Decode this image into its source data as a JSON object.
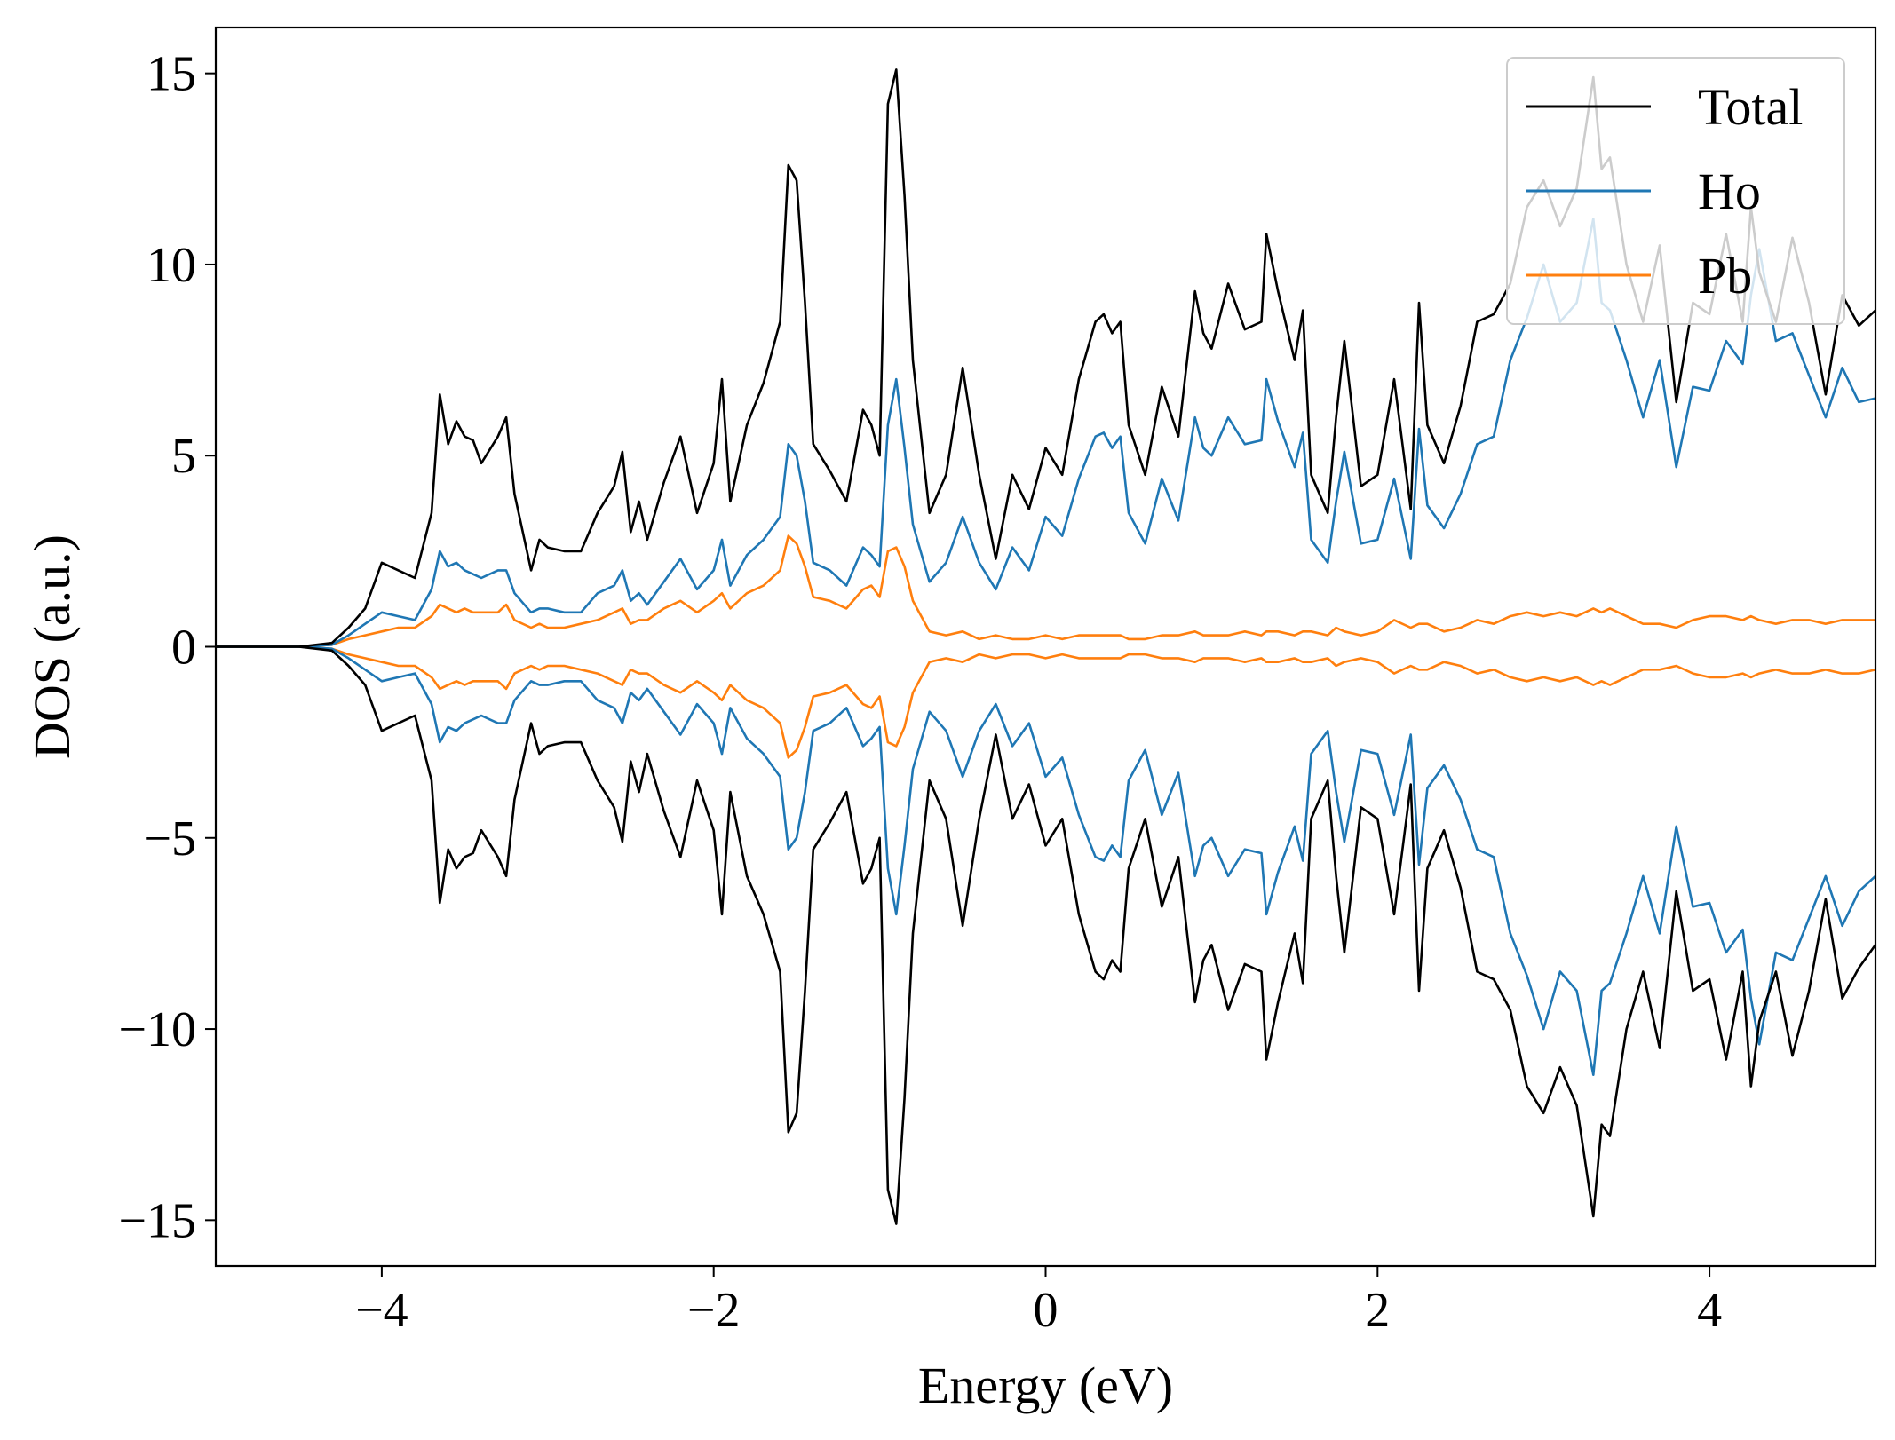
{
  "chart_data": {
    "type": "line",
    "title": "",
    "xlabel": "Energy (eV)",
    "ylabel": "DOS (a.u.)",
    "xlim": [
      -5,
      5
    ],
    "ylim": [
      -16.2,
      16.2
    ],
    "xticks": [
      -4,
      -2,
      0,
      2,
      4
    ],
    "xtick_labels": [
      "−4",
      "−2",
      "0",
      "2",
      "4"
    ],
    "yticks": [
      -15,
      -10,
      -5,
      0,
      5,
      10,
      15
    ],
    "ytick_labels": [
      "−15",
      "−10",
      "−5",
      "0",
      "5",
      "10",
      "15"
    ],
    "grid": false,
    "legend_position": "top-right",
    "mirrored_spin": true,
    "x": [
      -5.0,
      -4.5,
      -4.3,
      -4.2,
      -4.1,
      -4.0,
      -3.9,
      -3.8,
      -3.7,
      -3.65,
      -3.6,
      -3.55,
      -3.5,
      -3.45,
      -3.4,
      -3.3,
      -3.25,
      -3.2,
      -3.1,
      -3.05,
      -3.0,
      -2.9,
      -2.8,
      -2.7,
      -2.6,
      -2.55,
      -2.5,
      -2.45,
      -2.4,
      -2.3,
      -2.2,
      -2.1,
      -2.0,
      -1.95,
      -1.9,
      -1.8,
      -1.7,
      -1.6,
      -1.55,
      -1.5,
      -1.45,
      -1.4,
      -1.3,
      -1.2,
      -1.1,
      -1.05,
      -1.0,
      -0.95,
      -0.9,
      -0.85,
      -0.8,
      -0.7,
      -0.6,
      -0.5,
      -0.4,
      -0.3,
      -0.2,
      -0.1,
      0.0,
      0.1,
      0.2,
      0.3,
      0.35,
      0.4,
      0.45,
      0.5,
      0.6,
      0.7,
      0.8,
      0.9,
      0.95,
      1.0,
      1.1,
      1.2,
      1.3,
      1.33,
      1.4,
      1.5,
      1.55,
      1.6,
      1.7,
      1.75,
      1.8,
      1.9,
      2.0,
      2.1,
      2.2,
      2.25,
      2.3,
      2.4,
      2.5,
      2.6,
      2.7,
      2.8,
      2.9,
      3.0,
      3.1,
      3.2,
      3.3,
      3.35,
      3.4,
      3.5,
      3.6,
      3.7,
      3.8,
      3.9,
      4.0,
      4.1,
      4.2,
      4.25,
      4.3,
      4.4,
      4.5,
      4.6,
      4.7,
      4.8,
      4.9,
      5.0
    ],
    "series": [
      {
        "name": "Total",
        "color": "#000000",
        "values": [
          0,
          0,
          0.1,
          0.5,
          1.0,
          2.2,
          2.0,
          1.8,
          3.5,
          6.6,
          5.3,
          5.9,
          5.5,
          5.4,
          4.8,
          5.5,
          6.0,
          4.0,
          2.0,
          2.8,
          2.6,
          2.5,
          2.5,
          3.5,
          4.2,
          5.1,
          3.0,
          3.8,
          2.8,
          4.3,
          5.5,
          3.5,
          4.8,
          7.0,
          3.8,
          5.8,
          6.9,
          8.5,
          12.6,
          12.2,
          9.0,
          5.3,
          4.6,
          3.8,
          6.2,
          5.8,
          5.0,
          14.2,
          15.1,
          11.8,
          7.5,
          3.5,
          4.5,
          7.3,
          4.5,
          2.3,
          4.5,
          3.6,
          5.2,
          4.5,
          7.0,
          8.5,
          8.7,
          8.2,
          8.5,
          5.8,
          4.5,
          6.8,
          5.5,
          9.3,
          8.2,
          7.8,
          9.5,
          8.3,
          8.5,
          10.8,
          9.3,
          7.5,
          8.8,
          4.5,
          3.5,
          6.0,
          8.0,
          4.2,
          4.5,
          7.0,
          3.6,
          9.0,
          5.8,
          4.8,
          6.3,
          8.5,
          8.7,
          9.5,
          11.5,
          12.2,
          11.0,
          12.0,
          14.9,
          12.5,
          12.8,
          10.0,
          8.5,
          10.5,
          6.4,
          9.0,
          8.7,
          10.8,
          8.5,
          11.5,
          9.8,
          8.5,
          10.7,
          9.0,
          6.6,
          9.2,
          8.4,
          8.8
        ],
        "values_mirror": [
          0,
          0,
          -0.1,
          -0.5,
          -1.0,
          -2.2,
          -2.0,
          -1.8,
          -3.5,
          -6.7,
          -5.3,
          -5.8,
          -5.5,
          -5.4,
          -4.8,
          -5.5,
          -6.0,
          -4.0,
          -2.0,
          -2.8,
          -2.6,
          -2.5,
          -2.5,
          -3.5,
          -4.2,
          -5.1,
          -3.0,
          -3.8,
          -2.8,
          -4.3,
          -5.5,
          -3.5,
          -4.8,
          -7.0,
          -3.8,
          -6.0,
          -7.0,
          -8.5,
          -12.7,
          -12.2,
          -9.0,
          -5.3,
          -4.6,
          -3.8,
          -6.2,
          -5.8,
          -5.0,
          -14.2,
          -15.1,
          -11.8,
          -7.5,
          -3.5,
          -4.5,
          -7.3,
          -4.5,
          -2.3,
          -4.5,
          -3.6,
          -5.2,
          -4.5,
          -7.0,
          -8.5,
          -8.7,
          -8.2,
          -8.5,
          -5.8,
          -4.5,
          -6.8,
          -5.5,
          -9.3,
          -8.2,
          -7.8,
          -9.5,
          -8.3,
          -8.5,
          -10.8,
          -9.3,
          -7.5,
          -8.8,
          -4.5,
          -3.5,
          -6.0,
          -8.0,
          -4.2,
          -4.5,
          -7.0,
          -3.6,
          -9.0,
          -5.8,
          -4.8,
          -6.3,
          -8.5,
          -8.7,
          -9.5,
          -11.5,
          -12.2,
          -11.0,
          -12.0,
          -14.9,
          -12.5,
          -12.8,
          -10.0,
          -8.5,
          -10.5,
          -6.4,
          -9.0,
          -8.7,
          -10.8,
          -8.5,
          -11.5,
          -9.8,
          -8.5,
          -10.7,
          -9.0,
          -6.6,
          -9.2,
          -8.4,
          -7.8
        ]
      },
      {
        "name": "Ho",
        "color": "#1f77b4",
        "values": [
          0,
          0,
          0.05,
          0.3,
          0.6,
          0.9,
          0.8,
          0.7,
          1.5,
          2.5,
          2.1,
          2.2,
          2.0,
          1.9,
          1.8,
          2.0,
          2.0,
          1.4,
          0.9,
          1.0,
          1.0,
          0.9,
          0.9,
          1.4,
          1.6,
          2.0,
          1.2,
          1.4,
          1.1,
          1.7,
          2.3,
          1.5,
          2.0,
          2.8,
          1.6,
          2.4,
          2.8,
          3.4,
          5.3,
          5.0,
          3.8,
          2.2,
          2.0,
          1.6,
          2.6,
          2.4,
          2.1,
          5.8,
          7.0,
          5.2,
          3.2,
          1.7,
          2.2,
          3.4,
          2.2,
          1.5,
          2.6,
          2.0,
          3.4,
          2.9,
          4.4,
          5.5,
          5.6,
          5.2,
          5.5,
          3.5,
          2.7,
          4.4,
          3.3,
          6.0,
          5.2,
          5.0,
          6.0,
          5.3,
          5.4,
          7.0,
          5.9,
          4.7,
          5.6,
          2.8,
          2.2,
          3.8,
          5.1,
          2.7,
          2.8,
          4.4,
          2.3,
          5.7,
          3.7,
          3.1,
          4.0,
          5.3,
          5.5,
          7.5,
          8.6,
          10.0,
          8.5,
          9.0,
          11.2,
          9.0,
          8.8,
          7.5,
          6.0,
          7.5,
          4.7,
          6.8,
          6.7,
          8.0,
          7.4,
          9.2,
          10.4,
          8.0,
          8.2,
          7.1,
          6.0,
          7.3,
          6.4,
          6.5
        ],
        "values_mirror": [
          0,
          0,
          -0.05,
          -0.3,
          -0.6,
          -0.9,
          -0.8,
          -0.7,
          -1.5,
          -2.5,
          -2.1,
          -2.2,
          -2.0,
          -1.9,
          -1.8,
          -2.0,
          -2.0,
          -1.4,
          -0.9,
          -1.0,
          -1.0,
          -0.9,
          -0.9,
          -1.4,
          -1.6,
          -2.0,
          -1.2,
          -1.4,
          -1.1,
          -1.7,
          -2.3,
          -1.5,
          -2.0,
          -2.8,
          -1.6,
          -2.4,
          -2.8,
          -3.4,
          -5.3,
          -5.0,
          -3.8,
          -2.2,
          -2.0,
          -1.6,
          -2.6,
          -2.4,
          -2.1,
          -5.8,
          -7.0,
          -5.2,
          -3.2,
          -1.7,
          -2.2,
          -3.4,
          -2.2,
          -1.5,
          -2.6,
          -2.0,
          -3.4,
          -2.9,
          -4.4,
          -5.5,
          -5.6,
          -5.2,
          -5.5,
          -3.5,
          -2.7,
          -4.4,
          -3.3,
          -6.0,
          -5.2,
          -5.0,
          -6.0,
          -5.3,
          -5.4,
          -7.0,
          -5.9,
          -4.7,
          -5.6,
          -2.8,
          -2.2,
          -3.8,
          -5.1,
          -2.7,
          -2.8,
          -4.4,
          -2.3,
          -5.7,
          -3.7,
          -3.1,
          -4.0,
          -5.3,
          -5.5,
          -7.5,
          -8.6,
          -10.0,
          -8.5,
          -9.0,
          -11.2,
          -9.0,
          -8.8,
          -7.5,
          -6.0,
          -7.5,
          -4.7,
          -6.8,
          -6.7,
          -8.0,
          -7.4,
          -9.2,
          -10.4,
          -8.0,
          -8.2,
          -7.1,
          -6.0,
          -7.3,
          -6.4,
          -6.0
        ]
      },
      {
        "name": "Pb",
        "color": "#ff7f0e",
        "values": [
          0,
          0,
          0.05,
          0.2,
          0.3,
          0.4,
          0.5,
          0.5,
          0.8,
          1.1,
          1.0,
          0.9,
          1.0,
          0.9,
          0.9,
          0.9,
          1.1,
          0.7,
          0.5,
          0.6,
          0.5,
          0.5,
          0.6,
          0.7,
          0.9,
          1.0,
          0.6,
          0.7,
          0.7,
          1.0,
          1.2,
          0.9,
          1.2,
          1.4,
          1.0,
          1.4,
          1.6,
          2.0,
          2.9,
          2.7,
          2.1,
          1.3,
          1.2,
          1.0,
          1.5,
          1.6,
          1.3,
          2.5,
          2.6,
          2.1,
          1.2,
          0.4,
          0.3,
          0.4,
          0.2,
          0.3,
          0.2,
          0.2,
          0.3,
          0.2,
          0.3,
          0.3,
          0.3,
          0.3,
          0.3,
          0.2,
          0.2,
          0.3,
          0.3,
          0.4,
          0.3,
          0.3,
          0.3,
          0.4,
          0.3,
          0.4,
          0.4,
          0.3,
          0.4,
          0.4,
          0.3,
          0.5,
          0.4,
          0.3,
          0.4,
          0.7,
          0.5,
          0.6,
          0.6,
          0.4,
          0.5,
          0.7,
          0.6,
          0.8,
          0.9,
          0.8,
          0.9,
          0.8,
          1.0,
          0.9,
          1.0,
          0.8,
          0.6,
          0.6,
          0.5,
          0.7,
          0.8,
          0.8,
          0.7,
          0.8,
          0.7,
          0.6,
          0.7,
          0.7,
          0.6,
          0.7,
          0.7,
          0.7
        ],
        "values_mirror": [
          0,
          0,
          -0.05,
          -0.2,
          -0.3,
          -0.4,
          -0.5,
          -0.5,
          -0.8,
          -1.1,
          -1.0,
          -0.9,
          -1.0,
          -0.9,
          -0.9,
          -0.9,
          -1.1,
          -0.7,
          -0.5,
          -0.6,
          -0.5,
          -0.5,
          -0.6,
          -0.7,
          -0.9,
          -1.0,
          -0.6,
          -0.7,
          -0.7,
          -1.0,
          -1.2,
          -0.9,
          -1.2,
          -1.4,
          -1.0,
          -1.4,
          -1.6,
          -2.0,
          -2.9,
          -2.7,
          -2.1,
          -1.3,
          -1.2,
          -1.0,
          -1.5,
          -1.6,
          -1.3,
          -2.5,
          -2.6,
          -2.1,
          -1.2,
          -0.4,
          -0.3,
          -0.4,
          -0.2,
          -0.3,
          -0.2,
          -0.2,
          -0.3,
          -0.2,
          -0.3,
          -0.3,
          -0.3,
          -0.3,
          -0.3,
          -0.2,
          -0.2,
          -0.3,
          -0.3,
          -0.4,
          -0.3,
          -0.3,
          -0.3,
          -0.4,
          -0.3,
          -0.4,
          -0.4,
          -0.3,
          -0.4,
          -0.4,
          -0.3,
          -0.5,
          -0.4,
          -0.3,
          -0.4,
          -0.7,
          -0.5,
          -0.6,
          -0.6,
          -0.4,
          -0.5,
          -0.7,
          -0.6,
          -0.8,
          -0.9,
          -0.8,
          -0.9,
          -0.8,
          -1.0,
          -0.9,
          -1.0,
          -0.8,
          -0.6,
          -0.6,
          -0.5,
          -0.7,
          -0.8,
          -0.8,
          -0.7,
          -0.8,
          -0.7,
          -0.6,
          -0.7,
          -0.7,
          -0.6,
          -0.7,
          -0.7,
          -0.6
        ]
      }
    ]
  }
}
